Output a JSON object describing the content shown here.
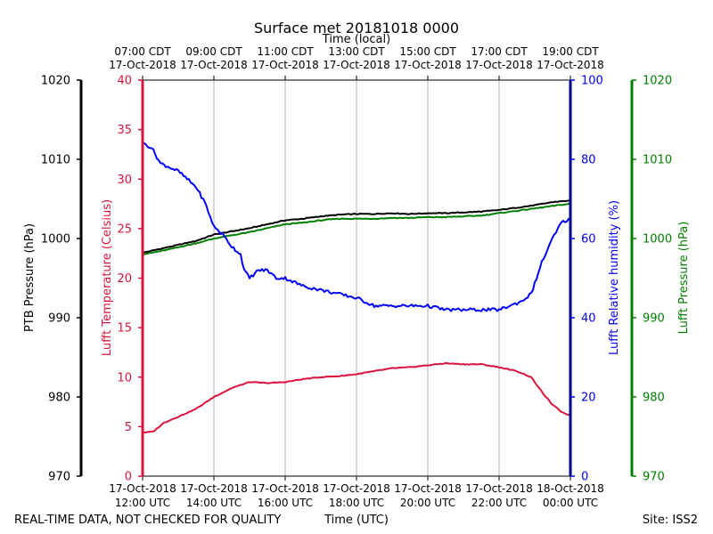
{
  "chart_data": {
    "type": "line",
    "title": "Surface met 20181018 0000",
    "top_axis_label": "Time (local)",
    "xlabel": "Time (UTC)",
    "footer_left": "REAL-TIME DATA, NOT CHECKED FOR QUALITY",
    "footer_right": "Site: ISS2",
    "grid": true,
    "x_range_hours": [
      0,
      12
    ],
    "x_ticks_utc": [
      {
        "hour": 0,
        "date": "17-Oct-2018",
        "time": "12:00 UTC"
      },
      {
        "hour": 2,
        "date": "17-Oct-2018",
        "time": "14:00 UTC"
      },
      {
        "hour": 4,
        "date": "17-Oct-2018",
        "time": "16:00 UTC"
      },
      {
        "hour": 6,
        "date": "17-Oct-2018",
        "time": "18:00 UTC"
      },
      {
        "hour": 8,
        "date": "17-Oct-2018",
        "time": "20:00 UTC"
      },
      {
        "hour": 10,
        "date": "17-Oct-2018",
        "time": "22:00 UTC"
      },
      {
        "hour": 12,
        "date": "18-Oct-2018",
        "time": "00:00 UTC"
      }
    ],
    "x_ticks_local": [
      {
        "hour": 0,
        "time": "07:00 CDT",
        "date": "17-Oct-2018"
      },
      {
        "hour": 2,
        "time": "09:00 CDT",
        "date": "17-Oct-2018"
      },
      {
        "hour": 4,
        "time": "11:00 CDT",
        "date": "17-Oct-2018"
      },
      {
        "hour": 6,
        "time": "13:00 CDT",
        "date": "17-Oct-2018"
      },
      {
        "hour": 8,
        "time": "15:00 CDT",
        "date": "17-Oct-2018"
      },
      {
        "hour": 10,
        "time": "17:00 CDT",
        "date": "17-Oct-2018"
      },
      {
        "hour": 12,
        "time": "19:00 CDT",
        "date": "17-Oct-2018"
      }
    ],
    "axes": {
      "ptb": {
        "label": "PTB Pressure (hPa)",
        "range": [
          970,
          1020
        ],
        "ticks": [
          970,
          980,
          990,
          1000,
          1010,
          1020
        ],
        "color": "#000000"
      },
      "temp": {
        "label": "Lufft Temperature (Celsius)",
        "range": [
          0,
          40
        ],
        "ticks": [
          0,
          5,
          10,
          15,
          20,
          25,
          30,
          35,
          40
        ],
        "color": "#dc143c"
      },
      "rh": {
        "label": "Lufft Relative humidity (%)",
        "range": [
          0,
          100
        ],
        "ticks": [
          0,
          20,
          40,
          60,
          80,
          100
        ],
        "color": "#0000ff"
      },
      "lp": {
        "label": "Lufft Pressure (hPa)",
        "range": [
          970,
          1020
        ],
        "ticks": [
          970,
          980,
          990,
          1000,
          1010,
          1020
        ],
        "color": "#008000"
      }
    },
    "series": [
      {
        "name": "PTB Pressure",
        "axis": "ptb",
        "color": "#000000",
        "x": [
          0,
          0.5,
          1,
          1.5,
          2,
          2.5,
          3,
          3.5,
          4,
          4.5,
          5,
          5.5,
          6,
          6.5,
          7,
          7.5,
          8,
          8.5,
          9,
          9.5,
          10,
          10.5,
          11,
          11.5,
          12
        ],
        "y": [
          998.2,
          998.7,
          999.2,
          999.7,
          1000.5,
          1000.9,
          1001.3,
          1001.8,
          1002.3,
          1002.5,
          1002.8,
          1003.0,
          1003.1,
          1003.1,
          1003.2,
          1003.1,
          1003.2,
          1003.2,
          1003.3,
          1003.4,
          1003.6,
          1003.9,
          1004.2,
          1004.6,
          1004.8
        ]
      },
      {
        "name": "Lufft Pressure",
        "axis": "lp",
        "color": "#008000",
        "x": [
          0,
          0.5,
          1,
          1.5,
          2,
          2.5,
          3,
          3.5,
          4,
          4.5,
          5,
          5.5,
          6,
          6.5,
          7,
          7.5,
          8,
          8.5,
          9,
          9.5,
          10,
          10.5,
          11,
          11.5,
          12
        ],
        "y": [
          998.0,
          998.4,
          998.9,
          999.4,
          1000.0,
          1000.4,
          1000.8,
          1001.3,
          1001.8,
          1002.0,
          1002.3,
          1002.5,
          1002.5,
          1002.5,
          1002.6,
          1002.6,
          1002.7,
          1002.7,
          1002.8,
          1002.9,
          1003.2,
          1003.5,
          1003.8,
          1004.1,
          1004.4
        ]
      },
      {
        "name": "Lufft Temperature",
        "axis": "temp",
        "color": "#dc143c",
        "x": [
          0,
          0.3,
          0.6,
          1,
          1.5,
          2,
          2.5,
          3,
          3.5,
          4,
          4.5,
          5,
          5.5,
          6,
          6.5,
          7,
          7.5,
          8,
          8.5,
          9,
          9.5,
          10,
          10.5,
          10.9,
          11.2,
          11.5,
          11.75,
          12
        ],
        "y": [
          4.4,
          4.5,
          5.4,
          6.0,
          6.8,
          8.0,
          8.9,
          9.5,
          9.4,
          9.5,
          9.8,
          10.0,
          10.1,
          10.3,
          10.6,
          10.9,
          11.0,
          11.2,
          11.4,
          11.3,
          11.3,
          11.0,
          10.6,
          10.0,
          8.5,
          7.2,
          6.5,
          6.1
        ]
      },
      {
        "name": "Lufft Relative humidity",
        "axis": "rh",
        "color": "#0000ff",
        "x": [
          0,
          0.25,
          0.5,
          0.75,
          1,
          1.25,
          1.5,
          1.75,
          2,
          2.25,
          2.5,
          2.75,
          2.85,
          3,
          3.25,
          3.5,
          3.75,
          4,
          4.5,
          5,
          5.5,
          6,
          6.5,
          7,
          7.5,
          8,
          8.5,
          9,
          9.5,
          10,
          10.3,
          10.6,
          10.9,
          11.2,
          11.5,
          11.75,
          12
        ],
        "y": [
          84,
          83,
          79,
          78,
          77,
          75,
          73,
          69,
          63,
          61,
          58,
          56,
          52,
          50,
          52,
          52,
          50,
          50,
          48,
          47,
          46,
          45,
          43,
          43,
          43,
          43,
          42,
          42,
          42,
          42,
          43,
          44,
          46,
          54,
          60,
          64,
          65
        ]
      }
    ]
  }
}
